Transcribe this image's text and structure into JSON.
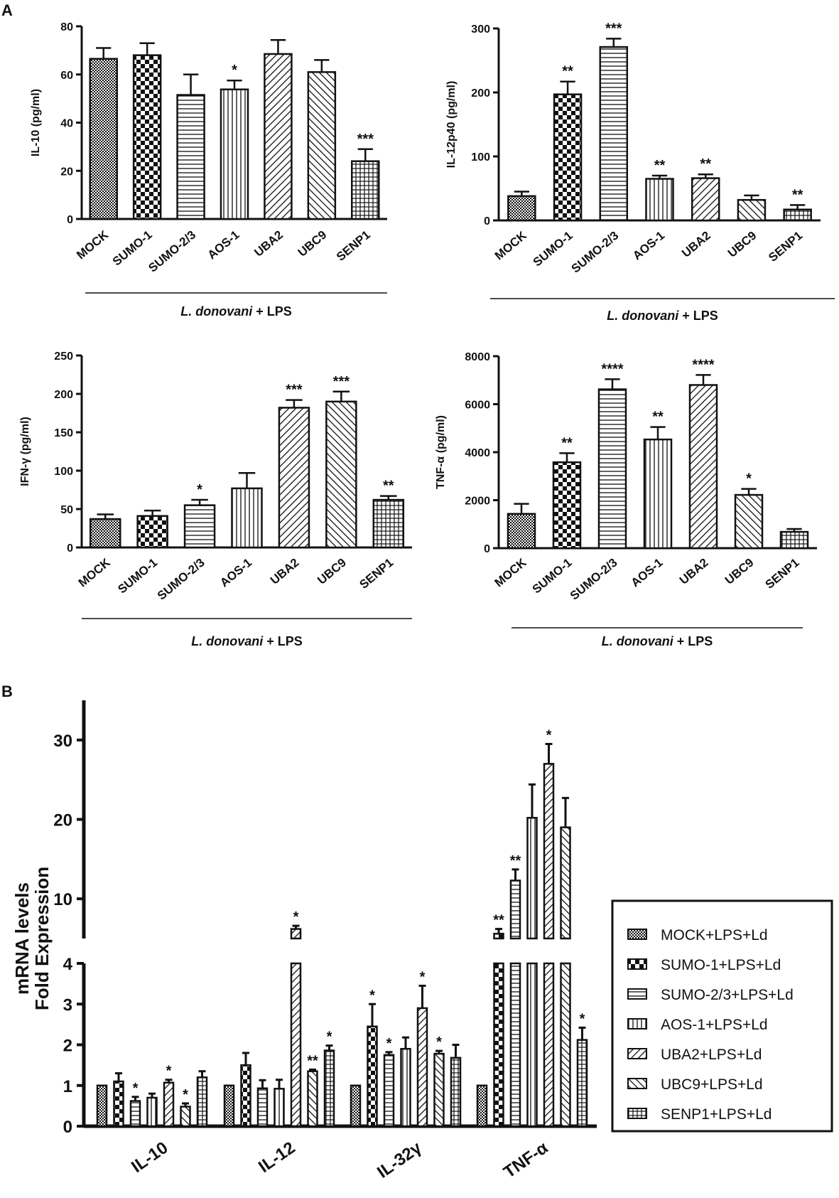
{
  "figure": {
    "panel_a_label": "A",
    "panel_b_label": "B"
  },
  "colors": {
    "ink": "#111111",
    "background": "#ffffff"
  },
  "chart_data": [
    {
      "id": "il10",
      "type": "bar",
      "panel": "A",
      "ylabel": "IL-10 (pg/ml)",
      "ylim": [
        0,
        80
      ],
      "yticks": [
        0,
        20,
        40,
        60,
        80
      ],
      "categories": [
        "MOCK",
        "SUMO-1",
        "SUMO-2/3",
        "AOS-1",
        "UBA2",
        "UBC9",
        "SENP1"
      ],
      "values": [
        66.5,
        68,
        51.5,
        53.8,
        68.5,
        61,
        24
      ],
      "errors": [
        4.5,
        5,
        8.5,
        3.7,
        5.8,
        5,
        5
      ],
      "stars": [
        "",
        "",
        "",
        "*",
        "",
        "",
        "***"
      ],
      "group_label": "L. donovani + LPS"
    },
    {
      "id": "il12p40",
      "type": "bar",
      "panel": "A",
      "ylabel": "IL-12p40 (pg/ml)",
      "ylim": [
        0,
        300
      ],
      "yticks": [
        0,
        100,
        200,
        300
      ],
      "categories": [
        "MOCK",
        "SUMO-1",
        "SUMO-2/3",
        "AOS-1",
        "UBA2",
        "UBC9",
        "SENP1"
      ],
      "values": [
        38,
        197,
        271,
        65,
        66,
        32,
        17
      ],
      "errors": [
        7,
        20,
        13,
        5,
        6,
        7,
        7
      ],
      "stars": [
        "",
        "**",
        "***",
        "**",
        "**",
        "",
        "**"
      ],
      "group_label": "L. donovani + LPS"
    },
    {
      "id": "ifng",
      "type": "bar",
      "panel": "A",
      "ylabel": "IFN-γ (pg/ml)",
      "ylim": [
        0,
        250
      ],
      "yticks": [
        0,
        50,
        100,
        150,
        200,
        250
      ],
      "categories": [
        "MOCK",
        "SUMO-1",
        "SUMO-2/3",
        "AOS-1",
        "UBA2",
        "UBC9",
        "SENP1"
      ],
      "values": [
        37,
        41,
        55,
        77,
        182,
        190,
        62
      ],
      "errors": [
        6,
        7,
        7,
        20,
        10,
        13,
        5
      ],
      "stars": [
        "",
        "",
        "*",
        "",
        "***",
        "***",
        "**"
      ],
      "group_label": "L. donovani + LPS"
    },
    {
      "id": "tnfa",
      "type": "bar",
      "panel": "A",
      "ylabel": "TNF-α (pg/ml)",
      "ylim": [
        0,
        8000
      ],
      "yticks": [
        0,
        2000,
        4000,
        6000,
        8000
      ],
      "categories": [
        "MOCK",
        "SUMO-1",
        "SUMO-2/3",
        "AOS-1",
        "UBA2",
        "UBC9",
        "SENP1"
      ],
      "values": [
        1430,
        3580,
        6620,
        4530,
        6800,
        2220,
        680
      ],
      "errors": [
        420,
        380,
        420,
        520,
        420,
        250,
        120
      ],
      "stars": [
        "",
        "**",
        "****",
        "**",
        "****",
        "*",
        ""
      ],
      "group_label": "L. donovani + LPS"
    },
    {
      "id": "mrna",
      "type": "bar",
      "panel": "B",
      "ylabel_line1": "mRNA levels",
      "ylabel_line2": "Fold Expression",
      "broken_axis": {
        "lower": [
          0,
          4
        ],
        "upper": [
          5,
          35
        ]
      },
      "yticks_lower": [
        0,
        1,
        2,
        3,
        4
      ],
      "yticks_upper": [
        10,
        20,
        30
      ],
      "categories": [
        "IL-10",
        "IL-12",
        "IL-32γ",
        "TNF-α"
      ],
      "series": [
        {
          "name": "MOCK+LPS+Ld",
          "values": [
            1,
            1,
            1,
            1
          ],
          "errors": [
            0,
            0,
            0,
            0
          ],
          "stars": [
            "",
            "",
            "",
            ""
          ]
        },
        {
          "name": "SUMO-1+LPS+Ld",
          "values": [
            1.1,
            1.5,
            2.45,
            5.6
          ],
          "errors": [
            0.2,
            0.3,
            0.55,
            0.6
          ],
          "stars": [
            "",
            "",
            "*",
            "**"
          ]
        },
        {
          "name": "SUMO-2/3+LPS+Ld",
          "values": [
            0.62,
            0.93,
            1.75,
            12.3
          ],
          "errors": [
            0.1,
            0.2,
            0.07,
            1.4
          ],
          "stars": [
            "*",
            "",
            "*",
            "**"
          ]
        },
        {
          "name": "AOS-1+LPS+Ld",
          "values": [
            0.7,
            0.92,
            1.9,
            20.2
          ],
          "errors": [
            0.1,
            0.22,
            0.28,
            4.2
          ],
          "stars": [
            "",
            "",
            "",
            ""
          ]
        },
        {
          "name": "UBA2+LPS+Ld",
          "values": [
            1.07,
            6.2,
            2.9,
            27
          ],
          "errors": [
            0.07,
            0.4,
            0.55,
            2.5
          ],
          "stars": [
            "*",
            "*",
            "*",
            "*"
          ]
        },
        {
          "name": "UBC9+LPS+Ld",
          "values": [
            0.48,
            1.35,
            1.78,
            19
          ],
          "errors": [
            0.08,
            0.04,
            0.07,
            3.7
          ],
          "stars": [
            "*",
            "**",
            "*",
            ""
          ]
        },
        {
          "name": "SENP1+LPS+Ld",
          "values": [
            1.2,
            1.86,
            1.68,
            2.12
          ],
          "errors": [
            0.15,
            0.12,
            0.32,
            0.3
          ],
          "stars": [
            "",
            "*",
            "",
            "*"
          ]
        }
      ]
    }
  ]
}
